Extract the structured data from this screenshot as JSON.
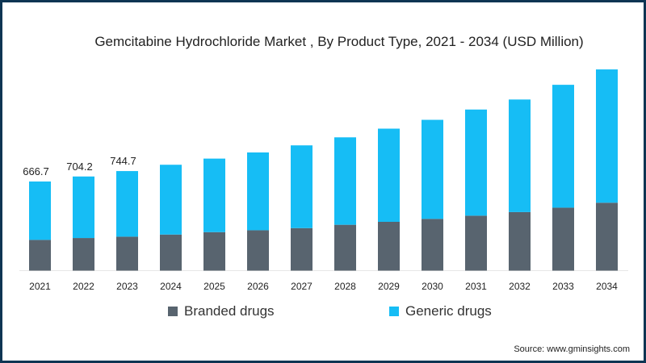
{
  "chart_data": {
    "type": "bar",
    "stacked": true,
    "title": "Gemcitabine Hydrochloride Market , By Product Type, 2021 - 2034 (USD Million)",
    "xlabel": "",
    "ylabel": "",
    "categories": [
      "2021",
      "2022",
      "2023",
      "2024",
      "2025",
      "2026",
      "2027",
      "2028",
      "2029",
      "2030",
      "2031",
      "2032",
      "2033",
      "2034"
    ],
    "series": [
      {
        "name": "Branded drugs",
        "color": "#58646f",
        "values": [
          230,
          244,
          254,
          270,
          288,
          302,
          318,
          343,
          365,
          387,
          411,
          438,
          471,
          508
        ]
      },
      {
        "name": "Generic drugs",
        "color": "#16bdf5",
        "values": [
          436.7,
          460.2,
          490.7,
          522,
          550,
          582,
          619,
          654,
          697,
          741,
          794,
          842,
          919,
          997
        ]
      }
    ],
    "data_labels": [
      "666.7",
      "704.2",
      "744.7"
    ],
    "ylim": [
      0,
      1600
    ],
    "grid": false,
    "legend_position": "bottom"
  },
  "source": "Source: www.gminsights.com"
}
